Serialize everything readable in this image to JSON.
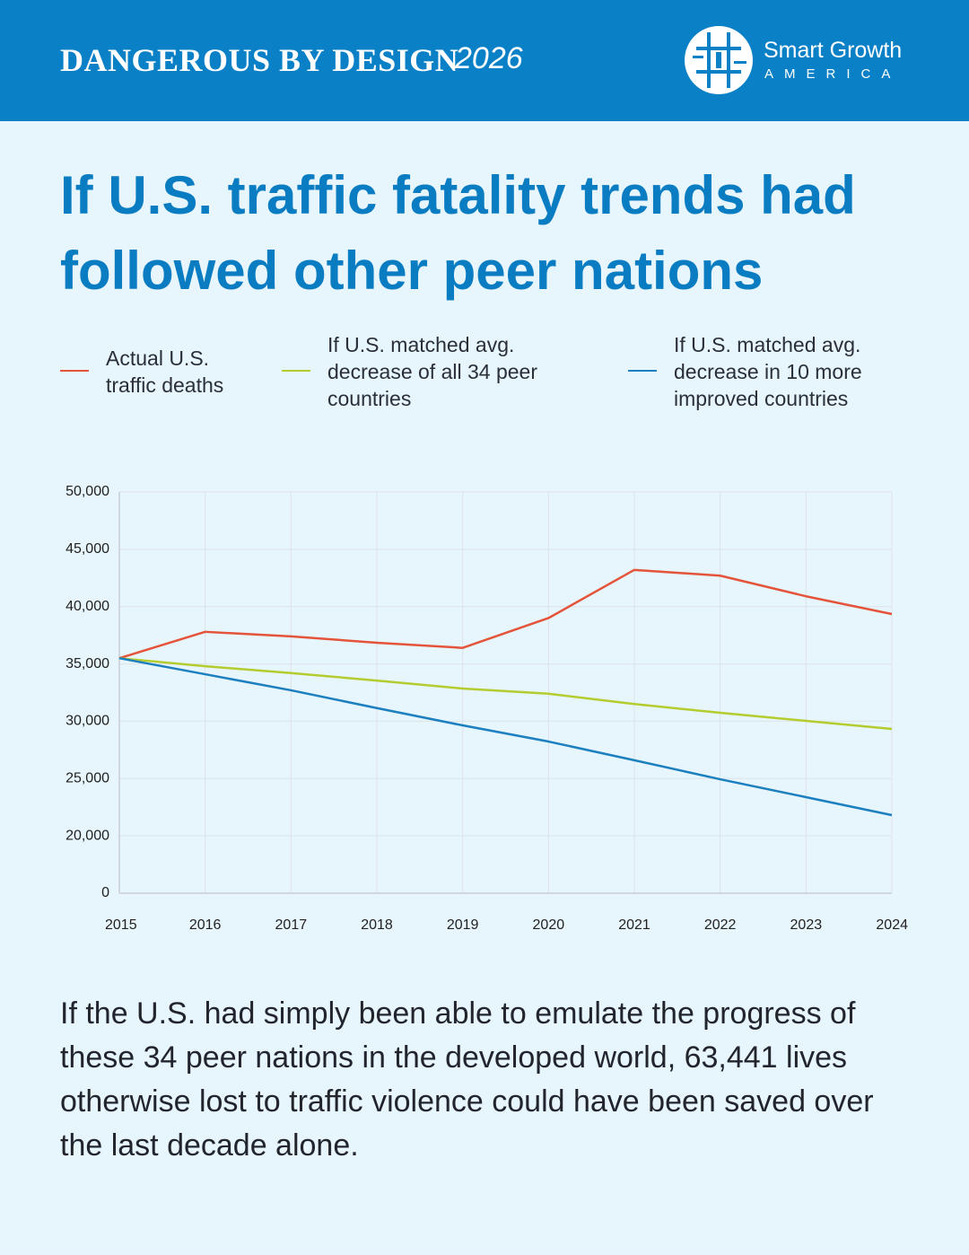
{
  "header": {
    "title": "DANGEROUS BY DESIGN",
    "year": "2026"
  },
  "logo": {
    "name": "Smart Growth",
    "sub": "AMERICA"
  },
  "chart_data": {
    "type": "line",
    "title": "If U.S. traffic fatality trends had followed other peer nations",
    "categories": [
      "2015",
      "2016",
      "2017",
      "2018",
      "2019",
      "2020",
      "2021",
      "2022",
      "2023",
      "2024"
    ],
    "series": [
      {
        "name": "Actual U.S. traffic deaths",
        "color": "#e4543a",
        "values": [
          35500,
          37800,
          37400,
          36850,
          36400,
          39000,
          43200,
          42700,
          40900,
          39350
        ]
      },
      {
        "name": "If U.S. matched avg. decrease of all 34 peer countries",
        "color": "#b5cc2e",
        "values": [
          35500,
          34800,
          34200,
          33550,
          32850,
          32400,
          31500,
          30740,
          30030,
          29330
        ]
      },
      {
        "name": "If U.S. matched avg. decrease in 10 more improved countries",
        "color": "#1b7fc0",
        "values": [
          35500,
          34100,
          32700,
          31150,
          29640,
          28230,
          26600,
          24940,
          23380,
          21810
        ]
      }
    ],
    "ylim": [
      0,
      50000
    ],
    "ybreak": [
      0,
      20000
    ],
    "yticks": [
      0,
      {
        "value": 20000,
        "label": "20,000"
      },
      {
        "value": 25000,
        "label": "25,000"
      },
      {
        "value": 30000,
        "label": "30,000"
      },
      {
        "value": 35000,
        "label": "35,000"
      },
      {
        "value": 40000,
        "label": "40,000"
      },
      {
        "value": 45000,
        "label": "45,000"
      },
      {
        "value": 50000,
        "label": "50,000"
      }
    ],
    "grid": true,
    "legend": "top"
  },
  "paragraph": "If the U.S. had simply been able to emulate the progress of these 34 peer nations in the developed world, 63,441 lives otherwise lost to traffic violence could have been saved over the last decade alone."
}
